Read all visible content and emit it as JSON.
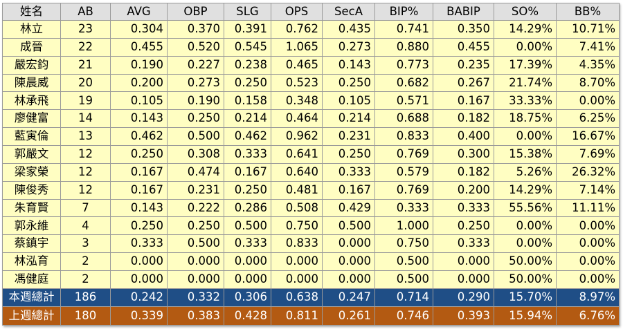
{
  "colors": {
    "header_bg": "#e0e0e0",
    "row_bg": "#fffec2",
    "this_week_bg": "#1f4e86",
    "last_week_bg": "#b35a12",
    "grid": "#9a9a9a"
  },
  "headers": [
    "姓名",
    "AB",
    "AVG",
    "OBP",
    "SLG",
    "OPS",
    "SecA",
    "BIP%",
    "BABIP",
    "SO%",
    "BB%"
  ],
  "rows": [
    [
      "林立",
      "23",
      "0.304",
      "0.370",
      "0.391",
      "0.762",
      "0.435",
      "0.741",
      "0.350",
      "14.29%",
      "10.71%"
    ],
    [
      "成晉",
      "22",
      "0.455",
      "0.520",
      "0.545",
      "1.065",
      "0.273",
      "0.880",
      "0.455",
      "0.00%",
      "7.41%"
    ],
    [
      "嚴宏鈞",
      "21",
      "0.190",
      "0.227",
      "0.238",
      "0.465",
      "0.143",
      "0.773",
      "0.235",
      "17.39%",
      "4.35%"
    ],
    [
      "陳晨威",
      "20",
      "0.200",
      "0.273",
      "0.250",
      "0.523",
      "0.250",
      "0.682",
      "0.267",
      "21.74%",
      "8.70%"
    ],
    [
      "林承飛",
      "19",
      "0.105",
      "0.190",
      "0.158",
      "0.348",
      "0.105",
      "0.571",
      "0.167",
      "33.33%",
      "0.00%"
    ],
    [
      "廖健富",
      "14",
      "0.143",
      "0.250",
      "0.214",
      "0.464",
      "0.214",
      "0.688",
      "0.182",
      "18.75%",
      "6.25%"
    ],
    [
      "藍寅倫",
      "13",
      "0.462",
      "0.500",
      "0.462",
      "0.962",
      "0.231",
      "0.833",
      "0.400",
      "0.00%",
      "16.67%"
    ],
    [
      "郭嚴文",
      "12",
      "0.250",
      "0.308",
      "0.333",
      "0.641",
      "0.250",
      "0.769",
      "0.300",
      "15.38%",
      "7.69%"
    ],
    [
      "梁家榮",
      "12",
      "0.167",
      "0.474",
      "0.167",
      "0.640",
      "0.333",
      "0.579",
      "0.182",
      "5.26%",
      "26.32%"
    ],
    [
      "陳俊秀",
      "12",
      "0.167",
      "0.231",
      "0.250",
      "0.481",
      "0.167",
      "0.769",
      "0.200",
      "14.29%",
      "7.14%"
    ],
    [
      "朱育賢",
      "7",
      "0.143",
      "0.222",
      "0.286",
      "0.508",
      "0.429",
      "0.333",
      "0.333",
      "55.56%",
      "11.11%"
    ],
    [
      "郭永維",
      "4",
      "0.250",
      "0.250",
      "0.500",
      "0.750",
      "0.500",
      "1.000",
      "0.250",
      "0.00%",
      "0.00%"
    ],
    [
      "蔡鎮宇",
      "3",
      "0.333",
      "0.500",
      "0.333",
      "0.833",
      "0.000",
      "0.750",
      "0.333",
      "0.00%",
      "0.00%"
    ],
    [
      "林泓育",
      "2",
      "0.000",
      "0.000",
      "0.000",
      "0.000",
      "0.000",
      "0.500",
      "0.000",
      "50.00%",
      "0.00%"
    ],
    [
      "馮健庭",
      "2",
      "0.000",
      "0.000",
      "0.000",
      "0.000",
      "0.000",
      "0.500",
      "0.000",
      "50.00%",
      "0.00%"
    ]
  ],
  "totals": {
    "this_week": [
      "本週總計",
      "186",
      "0.242",
      "0.332",
      "0.306",
      "0.638",
      "0.247",
      "0.714",
      "0.290",
      "15.70%",
      "8.97%"
    ],
    "last_week": [
      "上週總計",
      "180",
      "0.339",
      "0.383",
      "0.428",
      "0.811",
      "0.261",
      "0.746",
      "0.393",
      "15.94%",
      "6.76%"
    ]
  }
}
